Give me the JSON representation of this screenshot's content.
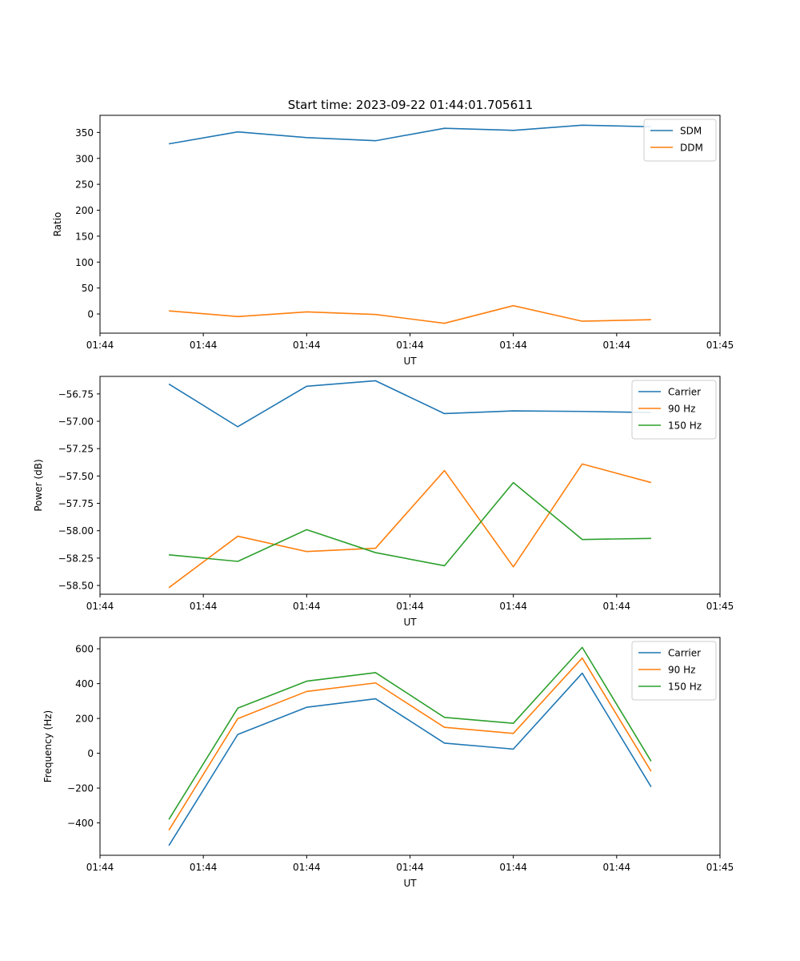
{
  "figure": {
    "title": "Start time: 2023-09-22 01:44:01.705611"
  },
  "chart_data": [
    {
      "type": "line",
      "title": "Start time: 2023-09-22 01:44:01.705611",
      "xlabel": "UT",
      "ylabel": "Ratio",
      "x": [
        1,
        2,
        3,
        4,
        5,
        6,
        7,
        8
      ],
      "xlim": [
        0,
        9
      ],
      "x_ticks": [
        0,
        1.5,
        3,
        4.5,
        6,
        7.5,
        9
      ],
      "x_tick_labels": [
        "01:44",
        "01:44",
        "01:44",
        "01:44",
        "01:44",
        "01:44",
        "01:45"
      ],
      "ylim": [
        -37,
        383
      ],
      "y_ticks": [
        0,
        50,
        100,
        150,
        200,
        250,
        300,
        350
      ],
      "y_tick_labels": [
        "0",
        "50",
        "100",
        "150",
        "200",
        "250",
        "300",
        "350"
      ],
      "legend_position": "top-right",
      "series": [
        {
          "name": "SDM",
          "color": "#1f77b4",
          "values": [
            328,
            351,
            340,
            334,
            358,
            354,
            364,
            361
          ]
        },
        {
          "name": "DDM",
          "color": "#ff7f0e",
          "values": [
            6,
            -5,
            4,
            -1,
            -18,
            16,
            -14,
            -11
          ]
        }
      ]
    },
    {
      "type": "line",
      "xlabel": "UT",
      "ylabel": "Power (dB)",
      "x": [
        1,
        2,
        3,
        4,
        5,
        6,
        7,
        8
      ],
      "xlim": [
        0,
        9
      ],
      "x_ticks": [
        0,
        1.5,
        3,
        4.5,
        6,
        7.5,
        9
      ],
      "x_tick_labels": [
        "01:44",
        "01:44",
        "01:44",
        "01:44",
        "01:44",
        "01:44",
        "01:45"
      ],
      "ylim": [
        -58.58,
        -56.59
      ],
      "y_ticks": [
        -58.5,
        -58.25,
        -58.0,
        -57.75,
        -57.5,
        -57.25,
        -57.0,
        -56.75
      ],
      "y_tick_labels": [
        "−58.50",
        "−58.25",
        "−58.00",
        "−57.75",
        "−57.50",
        "−57.25",
        "−57.00",
        "−56.75"
      ],
      "legend_position": "top-right",
      "series": [
        {
          "name": "Carrier",
          "color": "#1f77b4",
          "values": [
            -56.66,
            -57.05,
            -56.68,
            -56.63,
            -56.93,
            -56.905,
            -56.91,
            -56.92
          ]
        },
        {
          "name": "90 Hz",
          "color": "#ff7f0e",
          "values": [
            -58.52,
            -58.05,
            -58.19,
            -58.16,
            -57.45,
            -58.33,
            -57.39,
            -57.56
          ]
        },
        {
          "name": "150 Hz",
          "color": "#2ca02c",
          "values": [
            -58.22,
            -58.28,
            -57.99,
            -58.2,
            -58.32,
            -57.56,
            -58.08,
            -58.07
          ]
        }
      ]
    },
    {
      "type": "line",
      "xlabel": "UT",
      "ylabel": "Frequency (Hz)",
      "x": [
        1,
        2,
        3,
        4,
        5,
        6,
        7,
        8
      ],
      "xlim": [
        0,
        9
      ],
      "x_ticks": [
        0,
        1.5,
        3,
        4.5,
        6,
        7.5,
        9
      ],
      "x_tick_labels": [
        "01:44",
        "01:44",
        "01:44",
        "01:44",
        "01:44",
        "01:44",
        "01:45"
      ],
      "ylim": [
        -586,
        665
      ],
      "y_ticks": [
        -400,
        -200,
        0,
        200,
        400,
        600
      ],
      "y_tick_labels": [
        "−400",
        "−200",
        "0",
        "200",
        "400",
        "600"
      ],
      "legend_position": "top-right",
      "series": [
        {
          "name": "Carrier",
          "color": "#1f77b4",
          "values": [
            -530,
            108,
            264,
            313,
            58,
            24,
            460,
            -193
          ]
        },
        {
          "name": "90 Hz",
          "color": "#ff7f0e",
          "values": [
            -442,
            199,
            355,
            404,
            149,
            114,
            547,
            -104
          ]
        },
        {
          "name": "150 Hz",
          "color": "#2ca02c",
          "values": [
            -380,
            259,
            414,
            463,
            206,
            172,
            608,
            -46
          ]
        }
      ]
    }
  ]
}
